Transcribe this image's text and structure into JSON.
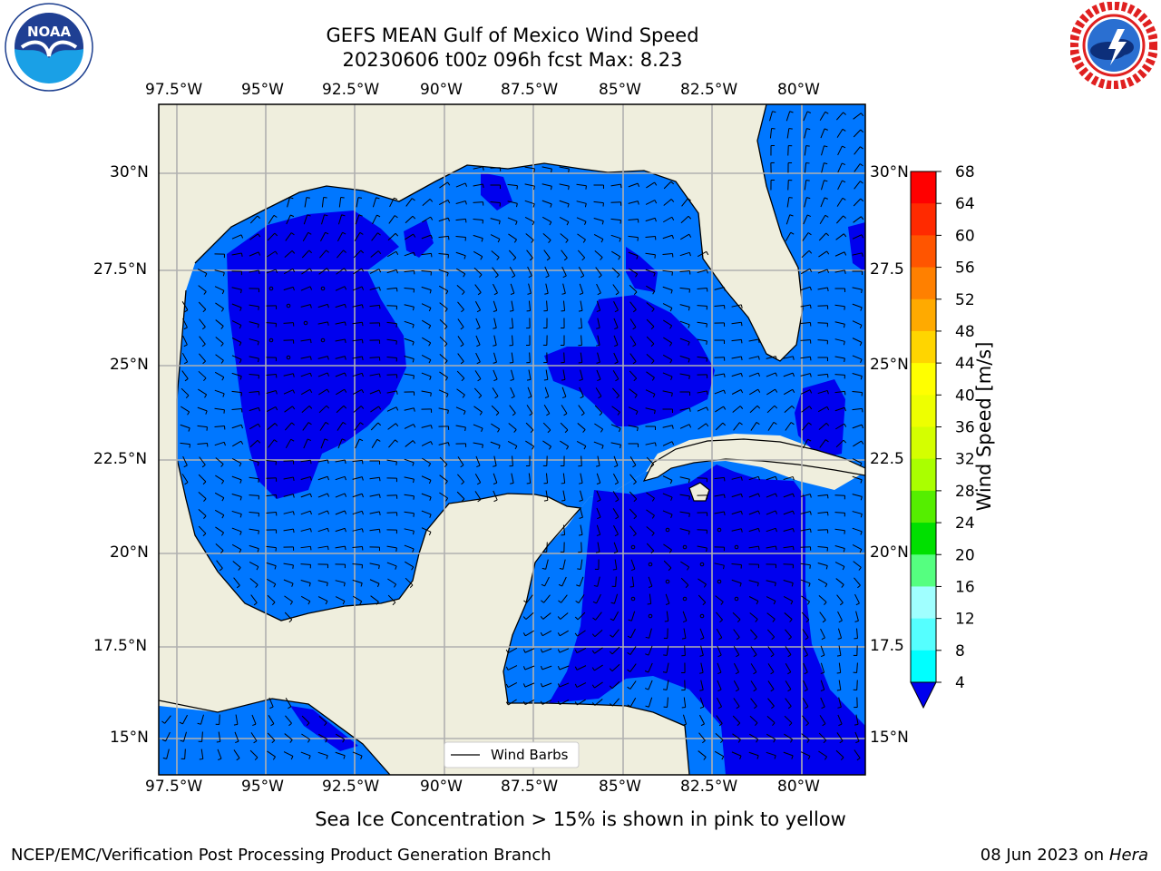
{
  "title": {
    "line1": "GEFS MEAN Gulf of Mexico Wind Speed",
    "line2": "20230606 t00z 096h fcst   Max: 8.23"
  },
  "logos": {
    "left": {
      "icon": "noaa-logo",
      "text": "NOAA",
      "ring_text": "NATIONAL OCEANIC AND ATMOSPHERIC ADMINISTRATION · U.S. DEPARTMENT OF COMMERCE"
    },
    "right": {
      "icon": "nws-logo",
      "ring_text": "NATIONAL WEATHER SERVICE"
    }
  },
  "map": {
    "lon_ticks": [
      "97.5°W",
      "95°W",
      "92.5°W",
      "90°W",
      "87.5°W",
      "85°W",
      "82.5°W",
      "80°W"
    ],
    "lat_ticks_left": [
      "30°N",
      "27.5°N",
      "25°N",
      "22.5°N",
      "20°N",
      "17.5°N",
      "15°N"
    ],
    "lat_ticks_right": [
      "30°N",
      "27.5",
      "25°N",
      "22.5",
      "20°N",
      "17.5",
      "15°N"
    ],
    "legend": "Wind Barbs",
    "colors": {
      "land": "#efeedd",
      "water_low": "#0077ff",
      "water_calm": "#0000ee",
      "grid": "#b0b0b0"
    }
  },
  "colorbar": {
    "label": "Wind Speed [m/s]",
    "ticks": [
      "68",
      "64",
      "60",
      "56",
      "52",
      "48",
      "44",
      "40",
      "36",
      "32",
      "28",
      "24",
      "20",
      "16",
      "12",
      "8",
      "4"
    ],
    "colors": [
      "#ff0000",
      "#ff2a00",
      "#ff5500",
      "#ff8000",
      "#ffaa00",
      "#ffd500",
      "#ffff00",
      "#eeff00",
      "#d4ff00",
      "#aaff00",
      "#55ee00",
      "#00e000",
      "#55ff80",
      "#a0ffff",
      "#55ffff",
      "#00ffff",
      "#0077ff"
    ],
    "extend_color": "#0000ee"
  },
  "footer": {
    "sea_ice": "Sea Ice Concentration > 15% is shown in pink to yellow",
    "credit": "NCEP/EMC/Verification Post Processing Product Generation Branch",
    "date": "08 Jun 2023 on",
    "machine": "Hera"
  }
}
